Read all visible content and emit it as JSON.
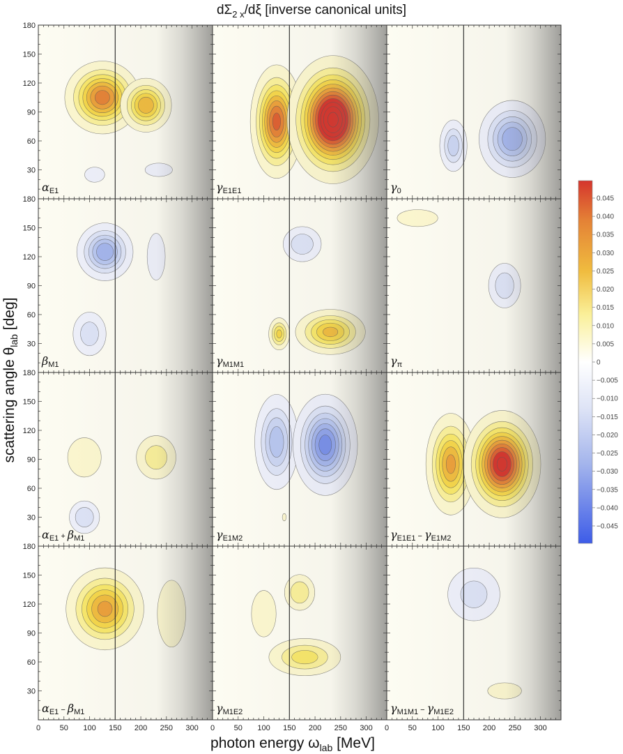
{
  "chart_data": {
    "type": "heatmap",
    "title": "dΣ2x/dξ [inverse canonical units]",
    "title_parts": {
      "main": "dΣ",
      "sub": "2 x",
      "tail": "/dξ [inverse canonical units]"
    },
    "xlabel": "photon energy ωlab [MeV]",
    "xlabel_parts": {
      "main": "photon energy ω",
      "sub": "lab",
      "tail": " [MeV]"
    },
    "ylabel": "scattering angle θlab [deg]",
    "ylabel_parts": {
      "main": "scattering angle θ",
      "sub": "lab",
      "tail": " [deg]"
    },
    "xlim": [
      0,
      340
    ],
    "ylim": [
      0,
      180
    ],
    "x_ticks": [
      0,
      50,
      100,
      150,
      200,
      250,
      300
    ],
    "y_ticks": [
      30,
      60,
      90,
      120,
      150
    ],
    "y_top_label": 180,
    "threshold_energy": 150,
    "shading": "gradient to grey above ~250 MeV",
    "colorbar": {
      "ticks": [
        "0.045",
        "0.040",
        "0.035",
        "0.030",
        "0.025",
        "0.020",
        "0.015",
        "0.010",
        "0.005",
        "0",
        "−0.005",
        "−0.010",
        "−0.015",
        "−0.020",
        "−0.025",
        "−0.030",
        "−0.035",
        "−0.040",
        "−0.045"
      ],
      "range": [
        -0.05,
        0.05
      ],
      "colors_positive": [
        "#ffffff",
        "#fcf7cf",
        "#faf09a",
        "#f8e76a",
        "#f5d64a",
        "#f0bc3f",
        "#eba03a",
        "#e48236",
        "#dd6031",
        "#d5352d"
      ],
      "colors_negative": [
        "#ffffff",
        "#eef0fa",
        "#dde3f6",
        "#cbd5f2",
        "#b8c6ef",
        "#a4b5ec",
        "#8fa3ea",
        "#7890e9",
        "#5f79e8",
        "#3d5ce8"
      ]
    },
    "panels": [
      {
        "label": {
          "main": "α",
          "sub": "E1"
        },
        "blobs": [
          {
            "x": 125,
            "y": 105,
            "sx": 70,
            "sy": 36,
            "a": 0.036
          },
          {
            "x": 210,
            "y": 97,
            "sx": 50,
            "sy": 28,
            "a": 0.028
          },
          {
            "x": 110,
            "y": 25,
            "sx": 30,
            "sy": 12,
            "a": -0.007
          },
          {
            "x": 235,
            "y": 30,
            "sx": 50,
            "sy": 13,
            "a": -0.005
          }
        ]
      },
      {
        "label": {
          "main": "γ",
          "sub": "E1E1"
        },
        "blobs": [
          {
            "x": 125,
            "y": 80,
            "sx": 48,
            "sy": 55,
            "a": 0.04
          },
          {
            "x": 235,
            "y": 82,
            "sx": 78,
            "sy": 58,
            "a": 0.06
          }
        ]
      },
      {
        "label": {
          "main": "γ",
          "sub": "0"
        },
        "blobs": [
          {
            "x": 130,
            "y": 55,
            "sx": 30,
            "sy": 30,
            "a": -0.017
          },
          {
            "x": 245,
            "y": 62,
            "sx": 65,
            "sy": 40,
            "a": -0.028
          }
        ]
      },
      {
        "label": {
          "main": "β",
          "sub": "M1"
        },
        "blobs": [
          {
            "x": 130,
            "y": 125,
            "sx": 55,
            "sy": 30,
            "a": -0.028
          },
          {
            "x": 100,
            "y": 40,
            "sx": 40,
            "sy": 28,
            "a": -0.012
          },
          {
            "x": 230,
            "y": 120,
            "sx": 40,
            "sy": 55,
            "a": -0.004
          }
        ]
      },
      {
        "label": {
          "main": "γ",
          "sub": "M1M1"
        },
        "blobs": [
          {
            "x": 130,
            "y": 40,
            "sx": 22,
            "sy": 18,
            "a": 0.02
          },
          {
            "x": 230,
            "y": 42,
            "sx": 70,
            "sy": 24,
            "a": 0.025
          },
          {
            "x": 175,
            "y": 133,
            "sx": 45,
            "sy": 22,
            "a": -0.013
          }
        ]
      },
      {
        "label": {
          "main": "γ",
          "sub": "π"
        },
        "blobs": [
          {
            "x": 230,
            "y": 90,
            "sx": 38,
            "sy": 28,
            "a": -0.013
          },
          {
            "x": 60,
            "y": 160,
            "sx": 90,
            "sy": 20,
            "a": 0.004
          }
        ]
      },
      {
        "label": {
          "main": "α",
          "sub": "E1",
          "op": " + ",
          "main2": "β",
          "sub2": "M1"
        },
        "blobs": [
          {
            "x": 90,
            "y": 92,
            "sx": 45,
            "sy": 28,
            "a": 0.009
          },
          {
            "x": 230,
            "y": 92,
            "sx": 48,
            "sy": 28,
            "a": 0.012
          },
          {
            "x": 90,
            "y": 30,
            "sx": 35,
            "sy": 20,
            "a": -0.014
          }
        ]
      },
      {
        "label": {
          "main": "γ",
          "sub": "E1M2"
        },
        "blobs": [
          {
            "x": 125,
            "y": 108,
            "sx": 45,
            "sy": 52,
            "a": -0.022
          },
          {
            "x": 220,
            "y": 105,
            "sx": 60,
            "sy": 50,
            "a": -0.036
          },
          {
            "x": 140,
            "y": 30,
            "sx": 14,
            "sy": 14,
            "a": 0.003
          }
        ]
      },
      {
        "label": {
          "main": "γ",
          "sub": "E1E1",
          "op": " − ",
          "main2": "γ",
          "sub2": "E1M2"
        },
        "blobs": [
          {
            "x": 125,
            "y": 85,
            "sx": 48,
            "sy": 52,
            "a": 0.03
          },
          {
            "x": 225,
            "y": 85,
            "sx": 68,
            "sy": 50,
            "a": 0.05
          }
        ]
      },
      {
        "label": {
          "main": "α",
          "sub": "E1",
          "op": " − ",
          "main2": "β",
          "sub2": "M1"
        },
        "blobs": [
          {
            "x": 130,
            "y": 115,
            "sx": 75,
            "sy": 42,
            "a": 0.03
          },
          {
            "x": 260,
            "y": 110,
            "sx": 40,
            "sy": 50,
            "a": 0.008
          }
        ]
      },
      {
        "label": {
          "main": "γ",
          "sub": "M1E2"
        },
        "blobs": [
          {
            "x": 180,
            "y": 65,
            "sx": 80,
            "sy": 22,
            "a": 0.016
          },
          {
            "x": 170,
            "y": 132,
            "sx": 35,
            "sy": 22,
            "a": 0.014
          },
          {
            "x": 100,
            "y": 110,
            "sx": 40,
            "sy": 40,
            "a": 0.006
          }
        ]
      },
      {
        "label": {
          "main": "γ",
          "sub": "M1M1",
          "op": " − ",
          "main2": "γ",
          "sub2": "M1E2"
        },
        "blobs": [
          {
            "x": 170,
            "y": 130,
            "sx": 65,
            "sy": 35,
            "a": -0.011
          },
          {
            "x": 230,
            "y": 30,
            "sx": 55,
            "sy": 14,
            "a": 0.006
          }
        ]
      }
    ]
  }
}
